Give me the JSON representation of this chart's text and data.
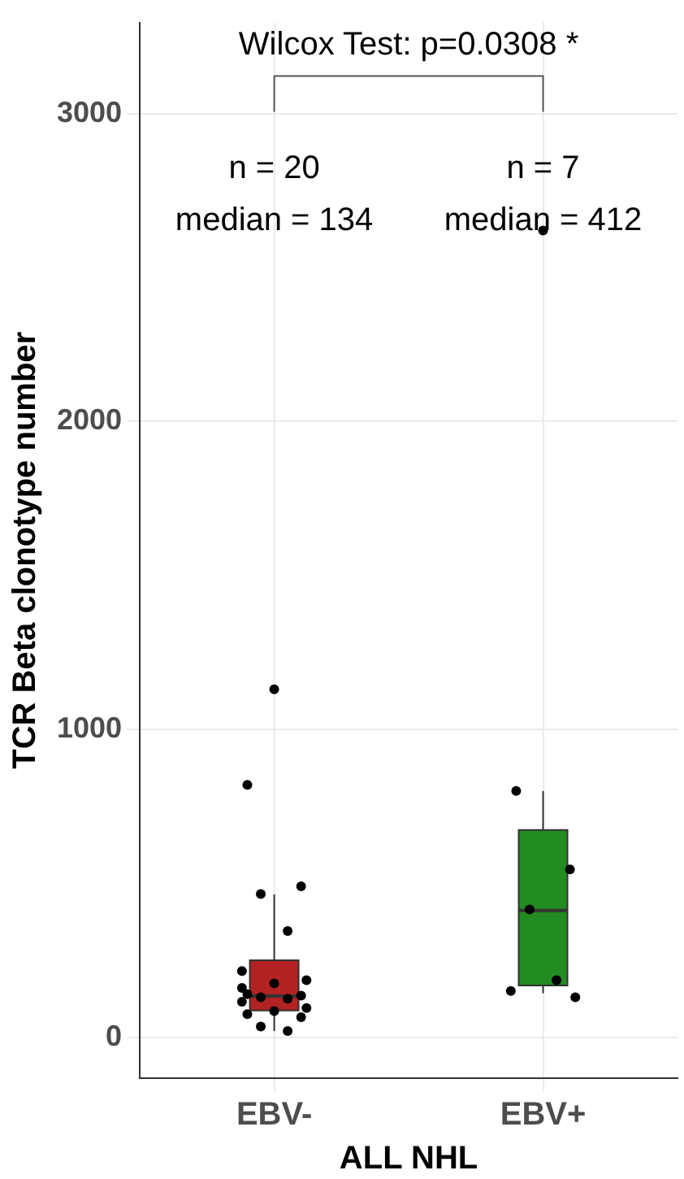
{
  "chart_data": {
    "type": "box",
    "categories": [
      "EBV-",
      "EBV+"
    ],
    "colors": [
      "#b22222",
      "#228b22"
    ],
    "boxes": [
      {
        "low": 20,
        "q1": 87,
        "median": 134,
        "q3": 250,
        "high": 464
      },
      {
        "low": 143,
        "q1": 168,
        "median": 412,
        "q3": 673,
        "high": 800
      }
    ],
    "series": [
      {
        "type": "scatter",
        "color": "#000000",
        "x": [
          "EBV-",
          "EBV-",
          "EBV-",
          "EBV-",
          "EBV-",
          "EBV-",
          "EBV-",
          "EBV-",
          "EBV-",
          "EBV-",
          "EBV-",
          "EBV-",
          "EBV-",
          "EBV-",
          "EBV-",
          "EBV-",
          "EBV-",
          "EBV-",
          "EBV-",
          "EBV-",
          "EBV+",
          "EBV+",
          "EBV+",
          "EBV+",
          "EBV+",
          "EBV+",
          "EBV+"
        ],
        "values": [
          1130,
          820,
          490,
          465,
          345,
          215,
          185,
          175,
          140,
          135,
          130,
          125,
          115,
          95,
          85,
          75,
          65,
          35,
          20,
          160,
          2620,
          800,
          545,
          415,
          185,
          150,
          130
        ]
      }
    ],
    "xlabel": "ALL NHL",
    "ylabel": "TCR Beta clonotype number",
    "ylim": [
      -133,
      3296
    ],
    "yticks": [
      0,
      1000,
      2000,
      3000
    ],
    "grid": true,
    "legend": false,
    "marker": "circle",
    "annotations": [
      "Wilcox Test: p=0.0308 *",
      "n = 20",
      "median = 134",
      "n = 7",
      "median = 412"
    ]
  }
}
